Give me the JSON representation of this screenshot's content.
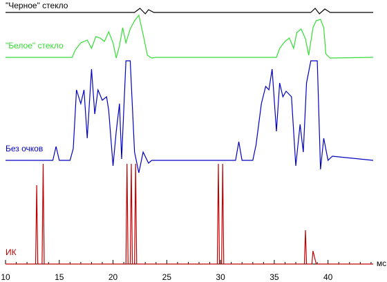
{
  "chart_data": {
    "type": "line",
    "xlabel": "мс",
    "xlim": [
      10,
      44.2
    ],
    "xticks": [
      10,
      15,
      20,
      25,
      30,
      35,
      40
    ],
    "xminorticks": [
      11,
      12,
      13,
      14,
      16,
      17,
      18,
      19,
      21,
      22,
      23,
      24,
      26,
      27,
      28,
      29,
      31,
      32,
      33,
      34,
      36,
      37,
      38,
      39,
      41,
      42,
      43,
      44
    ],
    "ylim": [
      0,
      378
    ],
    "series": [
      {
        "name": "\"Черное\" стекло",
        "color": "#000000",
        "x": [
          10,
          22,
          22.5,
          23,
          23.3,
          23.8,
          38.4,
          38.8,
          39.2,
          39.7,
          40.2,
          44.2
        ],
        "values": [
          364,
          364,
          370,
          362,
          368,
          364,
          364,
          370,
          362,
          369,
          364,
          364
        ]
      },
      {
        "name": "\"Белое\" стекло",
        "color": "#33dd33",
        "x": [
          10,
          16.2,
          16.5,
          17,
          17.6,
          18,
          18.4,
          18.8,
          19.2,
          19.6,
          20,
          20.3,
          20.6,
          20.9,
          21.2,
          21.6,
          22,
          22.4,
          22.8,
          23.2,
          23.6,
          24,
          35.2,
          35.5,
          36,
          36.4,
          36.8,
          37.1,
          37.5,
          37.9,
          38.2,
          38.6,
          38.9,
          39.3,
          39.6,
          39.8,
          40.2,
          44.2
        ],
        "values": [
          299,
          299,
          310,
          320,
          324,
          312,
          329,
          327,
          322,
          336,
          320,
          298,
          316,
          342,
          320,
          340,
          352,
          360,
          332,
          302,
          298,
          299,
          299,
          312,
          322,
          327,
          312,
          335,
          340,
          326,
          302,
          342,
          352,
          354,
          342,
          304,
          298,
          299
        ]
      },
      {
        "name": "Без очков",
        "color": "#0000c0",
        "x": [
          10,
          14.4,
          14.7,
          15,
          16,
          16.3,
          16.6,
          17,
          17.3,
          17.6,
          18,
          18.3,
          18.6,
          19,
          19.4,
          19.6,
          20,
          20.3,
          20.6,
          20.8,
          21.2,
          21.6,
          22,
          22.4,
          22.8,
          23.3,
          23.6,
          31.4,
          31.7,
          32,
          33,
          33.3,
          33.8,
          34.2,
          34.5,
          34.8,
          35.2,
          35.5,
          35.8,
          36.1,
          36.6,
          37,
          37.4,
          37.7,
          38,
          38.4,
          39,
          39.3,
          39.6,
          40,
          40.4,
          44.2
        ],
        "values": [
          150,
          150,
          170,
          150,
          150,
          167,
          252,
          232,
          252,
          182,
          282,
          217,
          252,
          237,
          242,
          222,
          142,
          192,
          232,
          152,
          294,
          294,
          162,
          132,
          162,
          146,
          150,
          150,
          177,
          150,
          150,
          172,
          232,
          257,
          252,
          282,
          192,
          262,
          242,
          250,
          242,
          142,
          202,
          162,
          262,
          294,
          294,
          137,
          182,
          150,
          156,
          150
        ]
      },
      {
        "name": "ИК",
        "color": "#c00000",
        "x": [
          10,
          12.8,
          12.9,
          13,
          13.4,
          13.5,
          13.6,
          21.2,
          21.3,
          21.4,
          21.6,
          21.7,
          21.8,
          22,
          22.1,
          22.2,
          29.7,
          29.8,
          29.9,
          30.1,
          30.2,
          30.3,
          37.8,
          37.9,
          38,
          38.5,
          38.6,
          38.9,
          44.2
        ],
        "values": [
          0,
          0,
          114,
          0,
          0,
          145,
          0,
          0,
          145,
          0,
          0,
          145,
          0,
          0,
          145,
          0,
          0,
          145,
          0,
          0,
          145,
          0,
          0,
          49,
          0,
          0,
          19,
          0,
          0
        ]
      }
    ]
  }
}
